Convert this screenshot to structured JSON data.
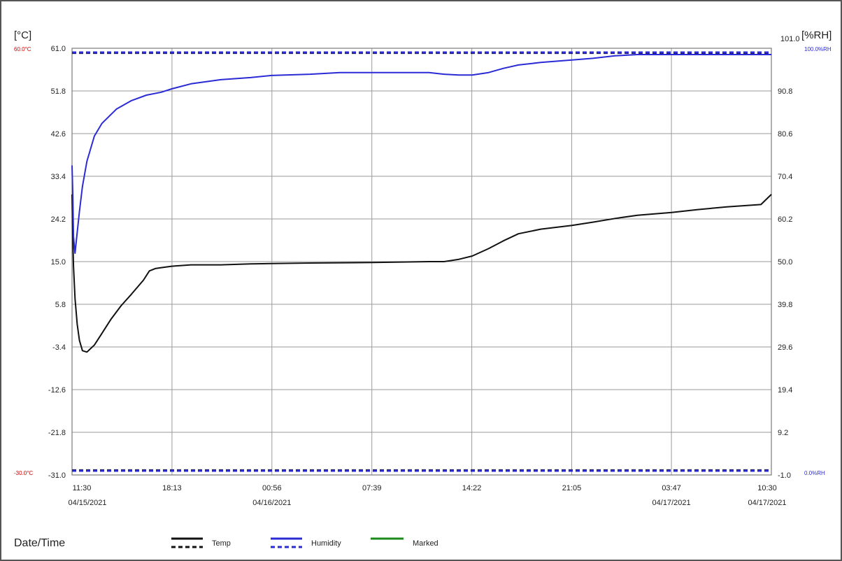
{
  "left_unit": "[°C]",
  "right_unit": "[%RH]",
  "alarm_labels": {
    "temp_high": "60.0°C",
    "temp_low": "-30.0°C",
    "hum_high": "100.0%RH",
    "hum_low": "0.0%RH"
  },
  "footer": {
    "x_axis_caption": "Date/Time",
    "legend": [
      "Temp",
      "Humidity",
      "Marked"
    ]
  },
  "colors": {
    "temp": "#111111",
    "humidity": "#2b2bd6",
    "marked": "#1a8a1a",
    "alarm_temp_text": "#cc0000",
    "alarm_hum_text": "#2b2bd6",
    "grid": "#9a9a9a"
  },
  "chart_data": {
    "type": "line",
    "x_ticks": [
      {
        "time": "11:30",
        "date": "04/15/2021",
        "hours": 0
      },
      {
        "time": "18:13",
        "date": "",
        "hours": 6.717
      },
      {
        "time": "00:56",
        "date": "04/16/2021",
        "hours": 13.433
      },
      {
        "time": "07:39",
        "date": "",
        "hours": 20.15
      },
      {
        "time": "14:22",
        "date": "",
        "hours": 26.867
      },
      {
        "time": "21:05",
        "date": "",
        "hours": 33.583
      },
      {
        "time": "03:47",
        "date": "04/17/2021",
        "hours": 40.283
      },
      {
        "time": "10:30",
        "date": "04/17/2021",
        "hours": 47
      }
    ],
    "xlim_hours": [
      0,
      47
    ],
    "y_left": {
      "label": "[°C]",
      "ylim": [
        -31.0,
        61.0
      ],
      "ticks": [
        "61.0",
        "51.8",
        "42.6",
        "33.4",
        "24.2",
        "15.0",
        "5.8",
        "-3.4",
        "-12.6",
        "-21.8",
        "-31.0"
      ]
    },
    "y_right": {
      "label": "[%RH]",
      "ylim": [
        -1.0,
        101.0
      ],
      "ticks": [
        "101.0",
        "90.8",
        "80.6",
        "70.4",
        "60.2",
        "50.0",
        "39.8",
        "29.6",
        "19.4",
        "9.2",
        "-1.0"
      ]
    },
    "alarms": [
      {
        "series": "Temp",
        "value": 60.0,
        "axis": "left"
      },
      {
        "series": "Temp",
        "value": -30.0,
        "axis": "left"
      },
      {
        "series": "Humidity",
        "value": 100.0,
        "axis": "right"
      },
      {
        "series": "Humidity",
        "value": 0.0,
        "axis": "right"
      }
    ],
    "grid": true,
    "legend_position": "bottom",
    "series": [
      {
        "name": "Temp",
        "axis": "left",
        "x": [
          0,
          0.05,
          0.1,
          0.2,
          0.35,
          0.5,
          0.7,
          1.0,
          1.5,
          2.0,
          2.6,
          3.3,
          4.0,
          4.8,
          5.2,
          5.6,
          6.0,
          6.7,
          8.0,
          10.0,
          12.0,
          13.4,
          16.0,
          20.2,
          24.0,
          25.0,
          26.0,
          26.9,
          28.0,
          29.0,
          30.0,
          31.5,
          33.6,
          35.0,
          36.5,
          38.0,
          40.3,
          42.0,
          44.0,
          46.3,
          47.0
        ],
        "y": [
          29.5,
          20.0,
          14.0,
          7.0,
          1.5,
          -2.0,
          -4.2,
          -4.5,
          -3.0,
          -0.5,
          2.5,
          5.5,
          8.0,
          11.0,
          13.0,
          13.5,
          13.7,
          14.0,
          14.3,
          14.3,
          14.5,
          14.6,
          14.7,
          14.8,
          15.0,
          15.0,
          15.5,
          16.2,
          17.8,
          19.5,
          21.0,
          22.0,
          22.8,
          23.5,
          24.3,
          25.0,
          25.6,
          26.2,
          26.8,
          27.3,
          29.5
        ]
      },
      {
        "name": "Humidity",
        "axis": "right",
        "x": [
          0,
          0.05,
          0.1,
          0.2,
          0.35,
          0.5,
          0.7,
          1.0,
          1.5,
          2.0,
          3.0,
          4.0,
          5.0,
          6.0,
          6.7,
          8.0,
          10.0,
          12.0,
          13.4,
          16.0,
          18.0,
          20.2,
          24.0,
          25.0,
          26.0,
          26.9,
          28.0,
          29.0,
          30.0,
          31.5,
          33.6,
          35.0,
          36.5,
          38.0,
          40.3,
          44.0,
          47.0
        ],
        "y": [
          73.0,
          66.0,
          56.0,
          52.0,
          57.0,
          62.0,
          68.0,
          74.0,
          80.0,
          83.0,
          86.5,
          88.5,
          89.8,
          90.5,
          91.3,
          92.5,
          93.5,
          94.0,
          94.5,
          94.8,
          95.2,
          95.2,
          95.2,
          94.8,
          94.6,
          94.6,
          95.2,
          96.2,
          97.0,
          97.6,
          98.2,
          98.6,
          99.2,
          99.5,
          99.5,
          99.5,
          99.5
        ]
      }
    ]
  }
}
